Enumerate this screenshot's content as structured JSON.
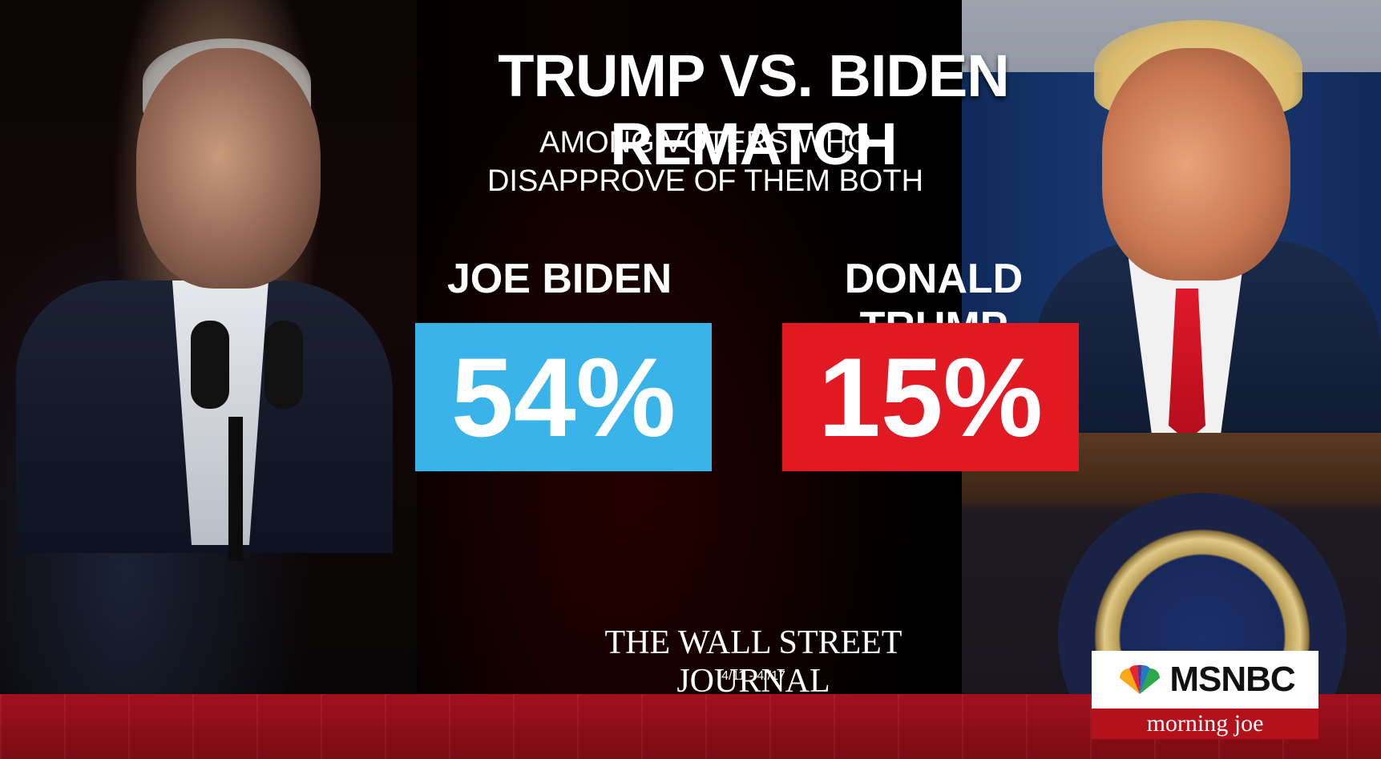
{
  "graphic": {
    "title": "TRUMP VS. BIDEN REMATCH",
    "subtitle_line1": "AMONG VOTERS WHO",
    "subtitle_line2": "DISAPPROVE OF THEM BOTH"
  },
  "candidates": [
    {
      "name": "JOE BIDEN",
      "value": "54%",
      "color": "#3ab3e8"
    },
    {
      "name": "DONALD TRUMP",
      "value": "15%",
      "color": "#e01922"
    }
  ],
  "source": {
    "name": "THE WALL STREET JOURNAL",
    "dates": "4/11 - 4//17"
  },
  "network": {
    "logo_text": "MSNBC",
    "show": "morning joe"
  },
  "colors": {
    "band_red": "#a3101c",
    "show_red": "#b3121c"
  }
}
